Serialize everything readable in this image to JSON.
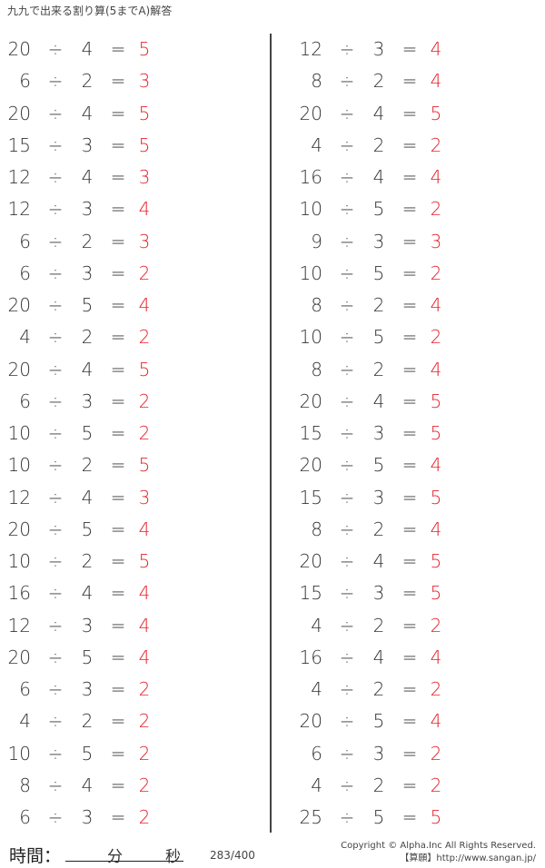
{
  "title": "九九で出来る割り算(5までA)解答",
  "operator": "÷",
  "equals": "=",
  "answer_color": "#e8202a",
  "left": [
    [
      "20",
      "4",
      "5"
    ],
    [
      "6",
      "2",
      "3"
    ],
    [
      "20",
      "4",
      "5"
    ],
    [
      "15",
      "3",
      "5"
    ],
    [
      "12",
      "4",
      "3"
    ],
    [
      "12",
      "3",
      "4"
    ],
    [
      "6",
      "2",
      "3"
    ],
    [
      "6",
      "3",
      "2"
    ],
    [
      "20",
      "5",
      "4"
    ],
    [
      "4",
      "2",
      "2"
    ],
    [
      "20",
      "4",
      "5"
    ],
    [
      "6",
      "3",
      "2"
    ],
    [
      "10",
      "5",
      "2"
    ],
    [
      "10",
      "2",
      "5"
    ],
    [
      "12",
      "4",
      "3"
    ],
    [
      "20",
      "5",
      "4"
    ],
    [
      "10",
      "2",
      "5"
    ],
    [
      "16",
      "4",
      "4"
    ],
    [
      "12",
      "3",
      "4"
    ],
    [
      "20",
      "5",
      "4"
    ],
    [
      "6",
      "3",
      "2"
    ],
    [
      "4",
      "2",
      "2"
    ],
    [
      "10",
      "5",
      "2"
    ],
    [
      "8",
      "4",
      "2"
    ],
    [
      "6",
      "3",
      "2"
    ]
  ],
  "right": [
    [
      "12",
      "3",
      "4"
    ],
    [
      "8",
      "2",
      "4"
    ],
    [
      "20",
      "4",
      "5"
    ],
    [
      "4",
      "2",
      "2"
    ],
    [
      "16",
      "4",
      "4"
    ],
    [
      "10",
      "5",
      "2"
    ],
    [
      "9",
      "3",
      "3"
    ],
    [
      "10",
      "5",
      "2"
    ],
    [
      "8",
      "2",
      "4"
    ],
    [
      "10",
      "5",
      "2"
    ],
    [
      "8",
      "2",
      "4"
    ],
    [
      "20",
      "4",
      "5"
    ],
    [
      "15",
      "3",
      "5"
    ],
    [
      "20",
      "5",
      "4"
    ],
    [
      "15",
      "3",
      "5"
    ],
    [
      "8",
      "2",
      "4"
    ],
    [
      "20",
      "4",
      "5"
    ],
    [
      "15",
      "3",
      "5"
    ],
    [
      "4",
      "2",
      "2"
    ],
    [
      "16",
      "4",
      "4"
    ],
    [
      "4",
      "2",
      "2"
    ],
    [
      "20",
      "5",
      "4"
    ],
    [
      "6",
      "3",
      "2"
    ],
    [
      "4",
      "2",
      "2"
    ],
    [
      "25",
      "5",
      "5"
    ]
  ],
  "footer": {
    "time_label": "時間：",
    "minutes": "分",
    "seconds": "秒",
    "page": "283/400",
    "copyright": "Copyright © Alpha.Inc All Rights Reserved.",
    "site": "【算願】http://www.sangan.jp/"
  }
}
